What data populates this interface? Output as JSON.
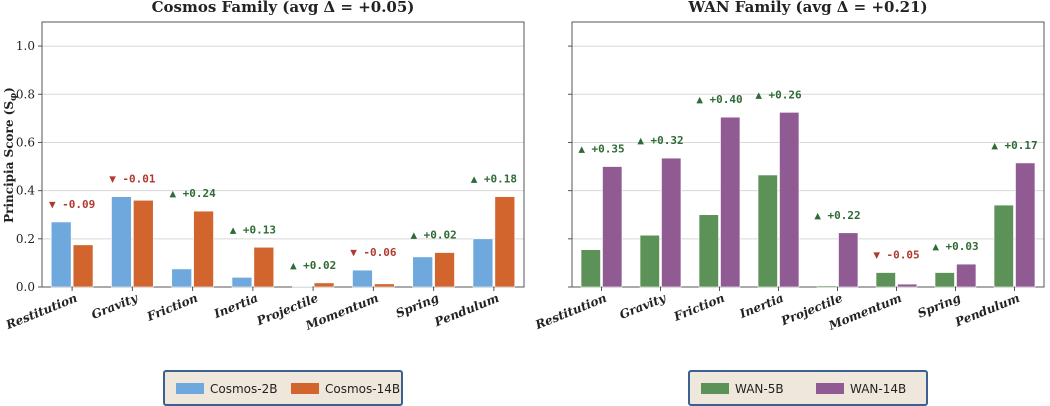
{
  "ylabel": "Principia Score  (S",
  "ylabel_sub": "φ",
  "ylabel_close": ")",
  "colors": {
    "up": "#2e6b35",
    "down": "#b03a2e",
    "grid": "#d8d8d8",
    "frame": "#555555"
  },
  "chart_data": [
    {
      "type": "bar",
      "title": "Cosmos Family   (avg Δ = +0.05)",
      "ylim": [
        0,
        1.1
      ],
      "yticks": [
        "0.0",
        "0.2",
        "0.4",
        "0.6",
        "0.8",
        "1.0"
      ],
      "grid": true,
      "legend": "bottom-center",
      "categories": [
        "Restitution",
        "Gravity",
        "Friction",
        "Inertia",
        "Projectile",
        "Momentum",
        "Spring",
        "Pendulum"
      ],
      "series": [
        {
          "name": "Cosmos-2B",
          "color": "#6fa8dc",
          "values": [
            0.27,
            0.375,
            0.075,
            0.04,
            0.003,
            0.07,
            0.125,
            0.2
          ]
        },
        {
          "name": "Cosmos-14B",
          "color": "#d2652d",
          "values": [
            0.175,
            0.36,
            0.315,
            0.165,
            0.017,
            0.013,
            0.143,
            0.375
          ]
        }
      ],
      "annotations": [
        "▼ -0.09",
        "▼ -0.01",
        "▲ +0.24",
        "▲ +0.13",
        "▲ +0.02",
        "▼ -0.06",
        "▲ +0.02",
        "▲ +0.18"
      ]
    },
    {
      "type": "bar",
      "title": "WAN Family   (avg Δ = +0.21)",
      "ylim": [
        0,
        1.1
      ],
      "yticks": [
        "0.0",
        "0.2",
        "0.4",
        "0.6",
        "0.8",
        "1.0"
      ],
      "grid": true,
      "legend": "bottom-center",
      "categories": [
        "Restitution",
        "Gravity",
        "Friction",
        "Inertia",
        "Projectile",
        "Momentum",
        "Spring",
        "Pendulum"
      ],
      "series": [
        {
          "name": "WAN-5B",
          "color": "#5c9158",
          "values": [
            0.155,
            0.215,
            0.3,
            0.465,
            0.005,
            0.06,
            0.06,
            0.34
          ]
        },
        {
          "name": "WAN-14B",
          "color": "#8f5b92",
          "values": [
            0.5,
            0.535,
            0.705,
            0.725,
            0.225,
            0.012,
            0.095,
            0.515
          ]
        }
      ],
      "annotations": [
        "▲ +0.35",
        "▲ +0.32",
        "▲ +0.40",
        "▲ +0.26",
        "▲ +0.22",
        "▼ -0.05",
        "▲ +0.03",
        "▲ +0.17"
      ]
    }
  ]
}
